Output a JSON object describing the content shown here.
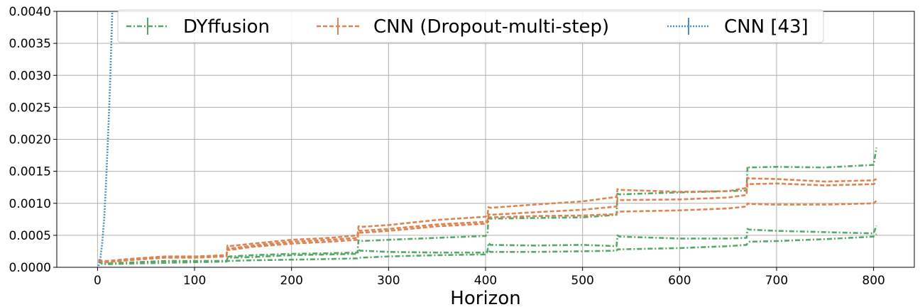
{
  "chart_data": {
    "type": "line",
    "title": "",
    "xlabel": "Horizon",
    "ylabel": "",
    "xlim": [
      -42,
      842
    ],
    "ylim": [
      0,
      0.004
    ],
    "x_ticks": [
      0,
      100,
      200,
      300,
      400,
      500,
      600,
      700,
      800
    ],
    "x_tick_labels": [
      "0",
      "100",
      "200",
      "300",
      "400",
      "500",
      "600",
      "700",
      "800"
    ],
    "y_ticks": [
      0,
      0.0005,
      0.001,
      0.0015,
      0.002,
      0.0025,
      0.003,
      0.0035,
      0.004
    ],
    "y_tick_labels": [
      "0.0000",
      "0.0005",
      "0.0010",
      "0.0015",
      "0.0020",
      "0.0025",
      "0.0030",
      "0.0035",
      "0.0040"
    ],
    "grid": true,
    "legend_position": "top",
    "series": [
      {
        "name": "DYffusion",
        "color": "#55a868",
        "dash": "dashdot",
        "lines": [
          {
            "x": [
              1,
              5,
              10,
              40,
              70,
              100,
              133,
              134,
              136,
              160,
              200,
              240,
              268,
              269,
              271,
              300,
              350,
              400,
              402,
              403,
              405,
              450,
              500,
              535,
              536,
              538,
              600,
              650,
              669,
              670,
              672,
              700,
              750,
              800,
              803
            ],
            "y": [
              0.00012,
              7e-05,
              6e-05,
              8e-05,
              0.0001,
              0.0001,
              0.0001,
              0.00014,
              0.00015,
              0.00016,
              0.00019,
              0.0002,
              0.00021,
              0.00027,
              0.00026,
              0.00024,
              0.00023,
              0.00023,
              0.00025,
              0.00038,
              0.00035,
              0.00034,
              0.00035,
              0.00033,
              0.0005,
              0.00048,
              0.00045,
              0.00045,
              0.00046,
              0.0006,
              0.00059,
              0.00057,
              0.00055,
              0.00053,
              0.00065
            ]
          },
          {
            "x": [
              1,
              5,
              10,
              40,
              70,
              100,
              133,
              134,
              136,
              160,
              200,
              240,
              268,
              269,
              271,
              300,
              350,
              400,
              402,
              403,
              405,
              450,
              500,
              535,
              536,
              538,
              600,
              650,
              669,
              670,
              672,
              700,
              750,
              800,
              803
            ],
            "y": [
              0.0001,
              5e-05,
              5e-05,
              6e-05,
              7e-05,
              8e-05,
              9e-05,
              0.0001,
              0.0001,
              0.00011,
              0.00012,
              0.00013,
              0.00014,
              0.00015,
              0.00015,
              0.00017,
              0.00019,
              0.0002,
              0.00024,
              0.00026,
              0.00024,
              0.00024,
              0.00025,
              0.00026,
              0.00028,
              0.00028,
              0.0003,
              0.00033,
              0.00035,
              0.00038,
              0.0004,
              0.00041,
              0.00044,
              0.00048,
              0.00052
            ]
          },
          {
            "x": [
              134,
              136,
              160,
              200,
              240,
              268,
              269,
              271,
              300,
              350,
              400,
              402,
              403,
              405,
              450,
              500,
              535,
              536,
              538,
              600,
              650,
              669,
              670,
              672,
              700,
              750,
              800,
              803
            ],
            "y": [
              0.00016,
              0.00017,
              0.00019,
              0.00021,
              0.00022,
              0.00023,
              0.00042,
              0.00041,
              0.00043,
              0.00046,
              0.00049,
              0.00052,
              0.00077,
              0.00076,
              0.00077,
              0.00078,
              0.00082,
              0.00115,
              0.00114,
              0.00117,
              0.00119,
              0.0012,
              0.00158,
              0.00156,
              0.00157,
              0.00156,
              0.0016,
              0.00187
            ]
          }
        ]
      },
      {
        "name": "CNN (Dropout-multi-step)",
        "color": "#dd8452",
        "dash": "dashed",
        "lines": [
          {
            "x": [
              1,
              5,
              10,
              40,
              70,
              100,
              133,
              134,
              136,
              160,
              200,
              240,
              268,
              269,
              271,
              300,
              350,
              400,
              402,
              403,
              405,
              450,
              500,
              535,
              536,
              538,
              600,
              650,
              669,
              670,
              672,
              700,
              750,
              800,
              803
            ],
            "y": [
              0.00012,
              0.0001,
              0.0001,
              0.00014,
              0.00017,
              0.00017,
              0.00019,
              0.00034,
              0.00033,
              0.00037,
              0.00043,
              0.00046,
              0.0005,
              0.00064,
              0.00063,
              0.00066,
              0.00074,
              0.00079,
              0.00081,
              0.00094,
              0.00093,
              0.00098,
              0.00103,
              0.0011,
              0.00122,
              0.00121,
              0.00118,
              0.00119,
              0.00124,
              0.0014,
              0.00139,
              0.00138,
              0.00134,
              0.00136,
              0.00138
            ]
          },
          {
            "x": [
              1,
              5,
              10,
              40,
              70,
              100,
              133,
              134,
              136,
              160,
              200,
              240,
              268,
              269,
              271,
              300,
              350,
              400,
              402,
              403,
              405,
              450,
              500,
              535,
              536,
              538,
              600,
              650,
              669,
              670,
              672,
              700,
              750,
              800,
              803
            ],
            "y": [
              0.00011,
              8e-05,
              8e-05,
              0.00013,
              0.00016,
              0.00016,
              0.00018,
              0.0003,
              0.00029,
              0.00034,
              0.0004,
              0.00043,
              0.00046,
              0.00058,
              0.00057,
              0.0006,
              0.00067,
              0.00071,
              0.00073,
              0.00083,
              0.00082,
              0.00086,
              0.0009,
              0.00095,
              0.00106,
              0.00105,
              0.00106,
              0.00109,
              0.00113,
              0.00131,
              0.0013,
              0.00131,
              0.00128,
              0.0013,
              0.00132
            ]
          },
          {
            "x": [
              1,
              5,
              10,
              40,
              70,
              100,
              133,
              134,
              136,
              160,
              200,
              240,
              268,
              269,
              271,
              300,
              350,
              400,
              402,
              403,
              405,
              450,
              500,
              535,
              536,
              538,
              600,
              650,
              669,
              670,
              672,
              700,
              750,
              800,
              803
            ],
            "y": [
              0.0001,
              8e-05,
              8e-05,
              0.00012,
              0.00015,
              0.00015,
              0.00017,
              0.00028,
              0.00027,
              0.00032,
              0.00037,
              0.0004,
              0.00043,
              0.00055,
              0.00054,
              0.00057,
              0.00064,
              0.00068,
              0.0007,
              0.00079,
              0.00078,
              0.0008,
              0.00081,
              0.00083,
              0.00087,
              0.00087,
              0.00089,
              0.00092,
              0.00095,
              0.001,
              0.00099,
              0.00098,
              0.00098,
              0.001,
              0.00104
            ]
          }
        ]
      },
      {
        "name": "CNN [43]",
        "color": "#4c8fc9",
        "dash": "dotted",
        "lines": [
          {
            "x": [
              1,
              3,
              5,
              7,
              9,
              11,
              13,
              14,
              15,
              16
            ],
            "y": [
              2e-05,
              0.00015,
              0.0004,
              0.0008,
              0.0014,
              0.0021,
              0.0029,
              0.0034,
              0.0039,
              0.0045
            ]
          }
        ]
      }
    ]
  }
}
